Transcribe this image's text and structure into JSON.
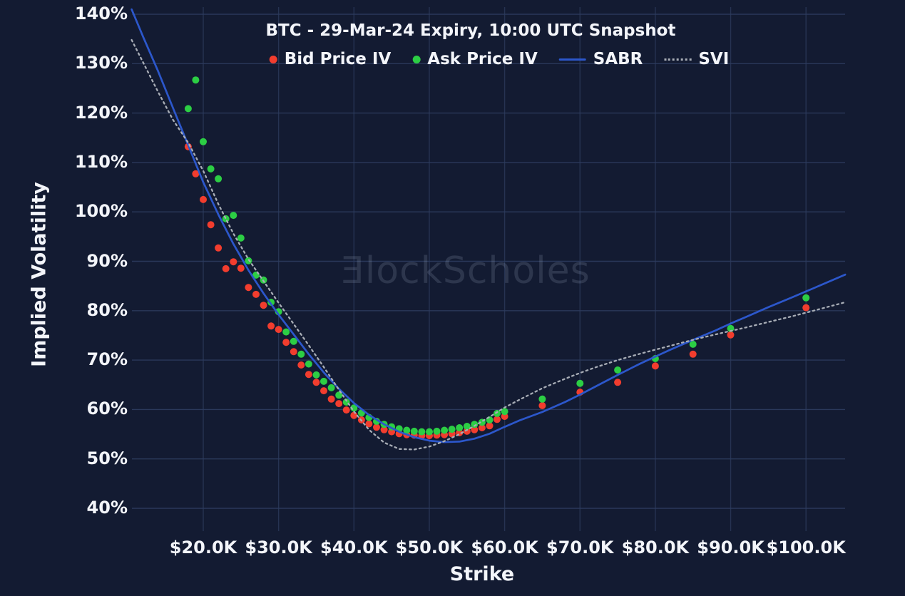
{
  "title": "BTC - 29-Mar-24 Expiry, 10:00 UTC Snapshot",
  "watermark": "ƎlockScholes",
  "legend": [
    {
      "label": "Bid Price IV",
      "type": "dot",
      "color": "#f23d2e"
    },
    {
      "label": "Ask Price IV",
      "type": "dot",
      "color": "#2cce44"
    },
    {
      "label": "SABR",
      "type": "line",
      "color": "#2c57cb"
    },
    {
      "label": "SVI",
      "type": "dashed",
      "color": "#a8adb6"
    }
  ],
  "chart_data": {
    "type": "scatter",
    "title": "BTC - 29-Mar-24 Expiry, 10:00 UTC Snapshot",
    "xlabel": "Strike",
    "ylabel": "Implied Volatility",
    "x_unit": "thousand USD",
    "y_unit": "percent",
    "xlim": [
      10.5,
      105.2
    ],
    "ylim": [
      35.4,
      141.4
    ],
    "grid": true,
    "legend_position": "top-center",
    "background_color": "#131b32",
    "grid_color": "#2d3c5e",
    "x_ticks": [
      {
        "value": 20,
        "label": "$20.0K"
      },
      {
        "value": 30,
        "label": "$30.0K"
      },
      {
        "value": 40,
        "label": "$40.0K"
      },
      {
        "value": 50,
        "label": "$50.0K"
      },
      {
        "value": 60,
        "label": "$60.0K"
      },
      {
        "value": 70,
        "label": "$70.0K"
      },
      {
        "value": 80,
        "label": "$80.0K"
      },
      {
        "value": 90,
        "label": "$90.0K"
      },
      {
        "value": 100,
        "label": "$100.0K"
      }
    ],
    "y_ticks": [
      {
        "value": 140,
        "label": "140%"
      },
      {
        "value": 130,
        "label": "130%"
      },
      {
        "value": 120,
        "label": "120%"
      },
      {
        "value": 110,
        "label": "110%"
      },
      {
        "value": 100,
        "label": "100%"
      },
      {
        "value": 90,
        "label": "90%"
      },
      {
        "value": 80,
        "label": "80%"
      },
      {
        "value": 70,
        "label": "70%"
      },
      {
        "value": 60,
        "label": "60%"
      },
      {
        "value": 50,
        "label": "50%"
      },
      {
        "value": 40,
        "label": "40%"
      }
    ],
    "series": [
      {
        "name": "Bid Price IV",
        "type": "scatter",
        "color": "#f23d2e",
        "points": [
          [
            18,
            113.2
          ],
          [
            19,
            107.7
          ],
          [
            20,
            102.5
          ],
          [
            21,
            97.4
          ],
          [
            22,
            92.7
          ],
          [
            23,
            88.5
          ],
          [
            24,
            89.9
          ],
          [
            25,
            88.6
          ],
          [
            26,
            84.7
          ],
          [
            27,
            83.3
          ],
          [
            28,
            81.1
          ],
          [
            29,
            76.9
          ],
          [
            30,
            76.2
          ],
          [
            31,
            73.6
          ],
          [
            32,
            71.7
          ],
          [
            33,
            69.0
          ],
          [
            34,
            67.1
          ],
          [
            35,
            65.5
          ],
          [
            36,
            63.8
          ],
          [
            37,
            62.1
          ],
          [
            38,
            61.2
          ],
          [
            39,
            59.9
          ],
          [
            40,
            58.8
          ],
          [
            41,
            57.9
          ],
          [
            42,
            57.1
          ],
          [
            43,
            56.4
          ],
          [
            44,
            55.9
          ],
          [
            45,
            55.5
          ],
          [
            46,
            55.1
          ],
          [
            47,
            54.9
          ],
          [
            48,
            54.8
          ],
          [
            49,
            54.7
          ],
          [
            50,
            54.7
          ],
          [
            51,
            54.8
          ],
          [
            52,
            54.9
          ],
          [
            53,
            55.1
          ],
          [
            54,
            55.3
          ],
          [
            55,
            55.6
          ],
          [
            56,
            55.9
          ],
          [
            57,
            56.3
          ],
          [
            58,
            56.7
          ],
          [
            59,
            58.0
          ],
          [
            60,
            58.6
          ],
          [
            65,
            60.8
          ],
          [
            70,
            63.5
          ],
          [
            75,
            65.5
          ],
          [
            80,
            68.8
          ],
          [
            85,
            71.2
          ],
          [
            90,
            75.1
          ],
          [
            100,
            80.6
          ]
        ]
      },
      {
        "name": "Ask Price IV",
        "type": "scatter",
        "color": "#2cce44",
        "points": [
          [
            18,
            120.9
          ],
          [
            19,
            126.7
          ],
          [
            20,
            114.2
          ],
          [
            21,
            108.7
          ],
          [
            22,
            106.7
          ],
          [
            23,
            98.6
          ],
          [
            24,
            99.3
          ],
          [
            25,
            94.7
          ],
          [
            26,
            90.1
          ],
          [
            27,
            87.2
          ],
          [
            28,
            86.2
          ],
          [
            29,
            81.7
          ],
          [
            30,
            79.8
          ],
          [
            31,
            75.7
          ],
          [
            32,
            73.8
          ],
          [
            33,
            71.2
          ],
          [
            34,
            69.2
          ],
          [
            35,
            67.0
          ],
          [
            36,
            65.7
          ],
          [
            37,
            64.4
          ],
          [
            38,
            62.9
          ],
          [
            39,
            61.5
          ],
          [
            40,
            60.3
          ],
          [
            41,
            59.3
          ],
          [
            42,
            58.4
          ],
          [
            43,
            57.6
          ],
          [
            44,
            57.0
          ],
          [
            45,
            56.5
          ],
          [
            46,
            56.1
          ],
          [
            47,
            55.8
          ],
          [
            48,
            55.6
          ],
          [
            49,
            55.5
          ],
          [
            50,
            55.5
          ],
          [
            51,
            55.6
          ],
          [
            52,
            55.8
          ],
          [
            53,
            56.0
          ],
          [
            54,
            56.3
          ],
          [
            55,
            56.6
          ],
          [
            56,
            57.0
          ],
          [
            57,
            57.4
          ],
          [
            58,
            57.9
          ],
          [
            59,
            59.2
          ],
          [
            60,
            59.6
          ],
          [
            65,
            62.1
          ],
          [
            70,
            65.3
          ],
          [
            75,
            68.0
          ],
          [
            80,
            70.3
          ],
          [
            85,
            73.2
          ],
          [
            90,
            76.4
          ],
          [
            100,
            82.6
          ]
        ]
      },
      {
        "name": "SABR",
        "type": "line",
        "color": "#2c57cb",
        "points": [
          [
            10.5,
            141.0
          ],
          [
            12,
            135.5
          ],
          [
            14,
            128.5
          ],
          [
            16,
            121.0
          ],
          [
            18,
            113.5
          ],
          [
            20,
            106.0
          ],
          [
            22,
            99.5
          ],
          [
            24,
            93.5
          ],
          [
            26,
            88.2
          ],
          [
            28,
            83.5
          ],
          [
            30,
            79.2
          ],
          [
            32,
            75.2
          ],
          [
            34,
            71.2
          ],
          [
            36,
            67.5
          ],
          [
            38,
            64.2
          ],
          [
            40,
            61.3
          ],
          [
            42,
            58.9
          ],
          [
            44,
            57.0
          ],
          [
            46,
            55.5
          ],
          [
            48,
            54.4
          ],
          [
            50,
            53.7
          ],
          [
            52,
            53.4
          ],
          [
            54,
            53.5
          ],
          [
            56,
            54.1
          ],
          [
            58,
            55.1
          ],
          [
            60,
            56.5
          ],
          [
            62,
            57.8
          ],
          [
            65,
            59.5
          ],
          [
            68,
            61.5
          ],
          [
            70,
            63.0
          ],
          [
            72,
            64.6
          ],
          [
            75,
            67.0
          ],
          [
            78,
            69.3
          ],
          [
            80,
            70.7
          ],
          [
            82,
            72.1
          ],
          [
            85,
            74.1
          ],
          [
            88,
            76.0
          ],
          [
            90,
            77.4
          ],
          [
            92,
            78.7
          ],
          [
            95,
            80.7
          ],
          [
            98,
            82.6
          ],
          [
            100,
            83.9
          ],
          [
            102,
            85.2
          ],
          [
            105.2,
            87.3
          ]
        ]
      },
      {
        "name": "SVI",
        "type": "dashed-line",
        "color": "#a8adb6",
        "points": [
          [
            10.5,
            134.8
          ],
          [
            12,
            130.3
          ],
          [
            14,
            124.3
          ],
          [
            16,
            118.6
          ],
          [
            18,
            114.0
          ],
          [
            20,
            108.3
          ],
          [
            22,
            101.6
          ],
          [
            24,
            95.6
          ],
          [
            26,
            90.4
          ],
          [
            28,
            86.0
          ],
          [
            30,
            81.6
          ],
          [
            32,
            77.3
          ],
          [
            34,
            73.0
          ],
          [
            36,
            68.6
          ],
          [
            38,
            64.0
          ],
          [
            40,
            59.6
          ],
          [
            42,
            55.9
          ],
          [
            44,
            53.3
          ],
          [
            46,
            52.0
          ],
          [
            48,
            51.9
          ],
          [
            50,
            52.5
          ],
          [
            52,
            53.6
          ],
          [
            54,
            55.0
          ],
          [
            56,
            56.7
          ],
          [
            58,
            58.5
          ],
          [
            60,
            60.4
          ],
          [
            62,
            62.0
          ],
          [
            65,
            64.3
          ],
          [
            68,
            66.2
          ],
          [
            70,
            67.4
          ],
          [
            72,
            68.5
          ],
          [
            75,
            70.0
          ],
          [
            78,
            71.3
          ],
          [
            80,
            72.1
          ],
          [
            82,
            72.9
          ],
          [
            85,
            74.1
          ],
          [
            88,
            75.2
          ],
          [
            90,
            75.9
          ],
          [
            92,
            76.6
          ],
          [
            95,
            77.7
          ],
          [
            98,
            78.8
          ],
          [
            100,
            79.6
          ],
          [
            102,
            80.4
          ],
          [
            105.2,
            81.7
          ]
        ]
      }
    ]
  }
}
